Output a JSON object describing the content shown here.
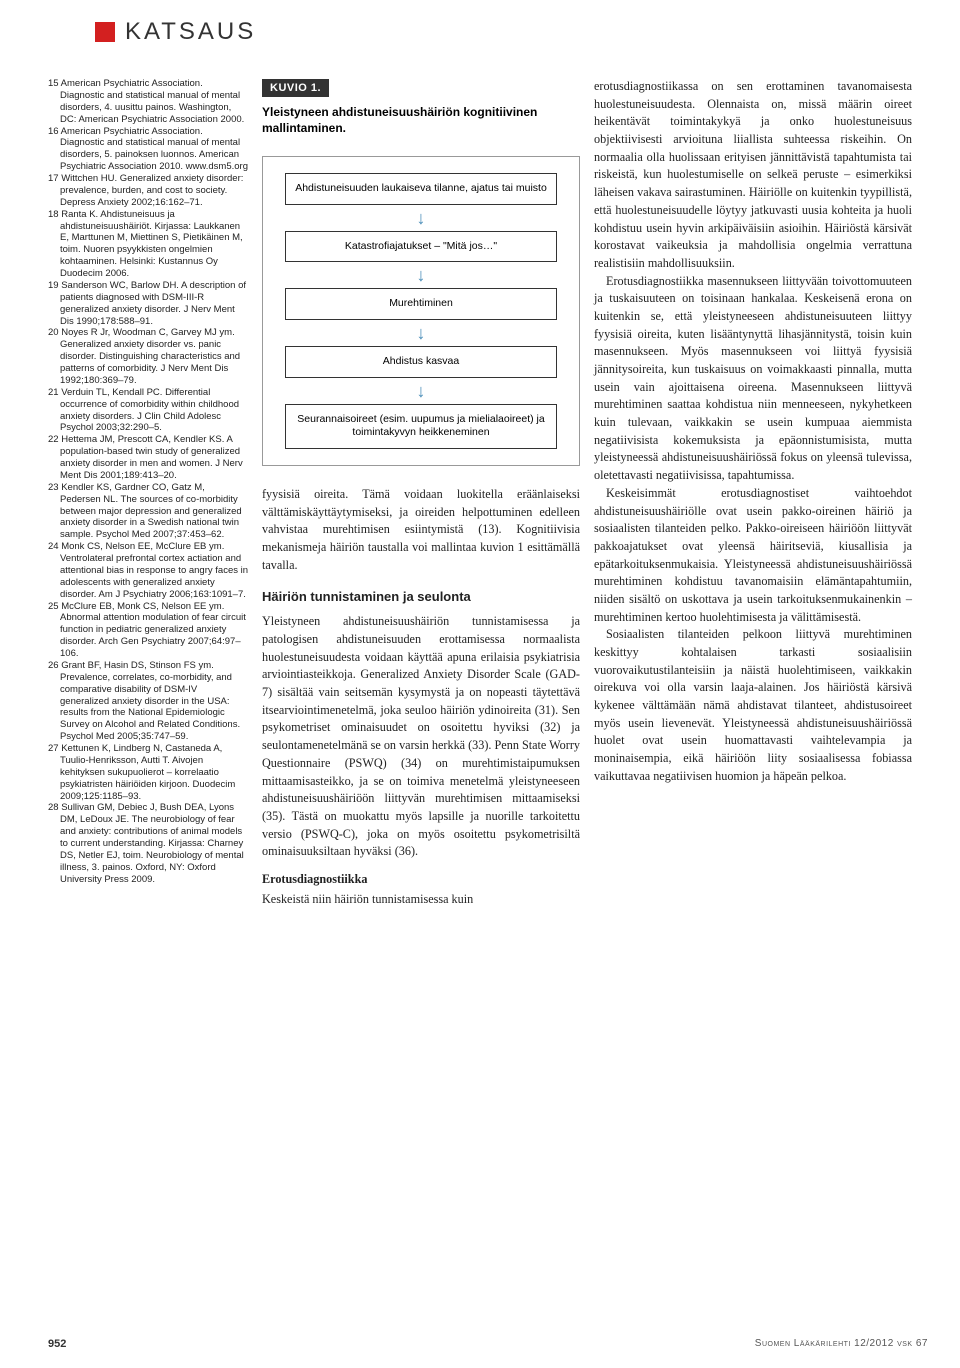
{
  "header": {
    "category": "KATSAUS"
  },
  "references": [
    "15 American Psychiatric Association. Diagnostic and statistical manual of mental disorders, 4. uusittu painos. Washington, DC: American Psychiatric Association 2000.",
    "16 American Psychiatric Association. Diagnostic and statistical manual of mental disorders, 5. painoksen luonnos. American Psychiatric Association 2010. www.dsm5.org",
    "17 Wittchen HU. Generalized anxiety disorder: prevalence, burden, and cost to society. Depress Anxiety 2002;16:162–71.",
    "18 Ranta K. Ahdistuneisuus ja ahdistuneisuushäiriöt. Kirjassa: Laukkanen E, Marttunen M, Miettinen S, Pietikäinen M, toim. Nuoren psyykkisten ongelmien kohtaaminen. Helsinki: Kustannus Oy Duodecim 2006.",
    "19 Sanderson WC, Barlow DH. A description of patients diagnosed with DSM-III-R generalized anxiety disorder. J Nerv Ment Dis 1990;178:588–91.",
    "20 Noyes R Jr, Woodman C, Garvey MJ ym. Generalized anxiety disorder vs. panic disorder. Distinguishing characteristics and patterns of comorbidity. J Nerv Ment Dis 1992;180:369–79.",
    "21 Verduin TL, Kendall PC. Differential occurrence of comorbidity within childhood anxiety disorders. J Clin Child Adolesc Psychol 2003;32:290–5.",
    "22 Hettema JM, Prescott CA, Kendler KS. A population-based twin study of generalized anxiety disorder in men and women. J Nerv Ment Dis 2001;189:413–20.",
    "23 Kendler KS, Gardner CO, Gatz M, Pedersen NL. The sources of co-morbidity between major depression and generalized anxiety disorder in a Swedish national twin sample. Psychol Med 2007;37:453–62.",
    "24 Monk CS, Nelson EE, McClure EB ym. Ventrolateral prefrontal cortex actiation and attentional bias in response to angry faces in adolescents with generalized anxiety disorder. Am J Psychiatry 2006;163:1091–7.",
    "25 McClure EB, Monk CS, Nelson EE ym. Abnormal attention modulation of fear circuit function in pediatric generalized anxiety disorder. Arch Gen Psychiatry 2007;64:97–106.",
    "26 Grant BF, Hasin DS, Stinson FS ym. Prevalence, correlates, co-morbidity, and comparative disability of DSM-IV generalized anxiety disorder in the USA: results from the National Epidemiologic Survey on Alcohol and Related Conditions. Psychol Med 2005;35:747–59.",
    "27 Kettunen K, Lindberg N, Castaneda A, Tuulio-Henriksson, Autti T. Aivojen kehityksen sukupuolierot – korrelaatio psykiatristen häiriöiden kirjoon. Duodecim 2009;125:1185–93.",
    "28 Sullivan GM, Debiec J, Bush DEA, Lyons DM, LeDoux JE. The neurobiology of fear and anxiety: contributions of animal models to current understanding. Kirjassa: Charney DS, Netler EJ, toim. Neurobiology of mental illness, 3. painos. Oxford, NY: Oxford University Press 2009."
  ],
  "figure": {
    "label": "KUVIO 1.",
    "title": "Yleistyneen ahdistuneisuushäiriön kognitiivinen mallintaminen.",
    "boxes": [
      "Ahdistuneisuuden laukaiseva tilanne, ajatus tai muisto",
      "Katastrofiajatukset – \"Mitä jos…\"",
      "Murehtiminen",
      "Ahdistus kasvaa",
      "Seurannaisoireet (esim. uupumus ja mielialaoireet) ja toimintakyvyn heikkeneminen"
    ],
    "arrow_color": "#4a8db8",
    "box_border": "#333333",
    "outer_border": "#999999"
  },
  "body": {
    "col1": {
      "p1": "fyysisiä oireita. Tämä voidaan luokitella eräänlaiseksi välttämiskäyttäytymiseksi, ja oireiden helpottuminen edelleen vahvistaa murehtimisen esiintymistä (13). Kognitiivisia mekanismeja häiriön taustalla voi mallintaa kuvion 1 esittämällä tavalla.",
      "h1": "Häiriön tunnistaminen ja seulonta",
      "p2": "Yleistyneen ahdistuneisuushäiriön tunnistamisessa ja patologisen ahdistuneisuuden erottamisessa normaalista huolestuneisuudesta voidaan käyttää apuna erilaisia psykiatrisia arviointiasteikkoja. Generalized Anxiety Disorder Scale (GAD-7) sisältää vain seitsemän kysymystä ja on nopeasti täytettävä itsearviointimenetelmä, joka seuloo häiriön ydinoireita (31). Sen psykometriset ominaisuudet on osoitettu hyviksi (32) ja seulontamenetelmänä se on varsin herkkä (33). Penn State Worry Questionnaire (PSWQ) (34) on murehtimistaipumuksen mittaamisasteikko, ja se on toimiva menetelmä yleistyneeseen ahdistuneisuushäiriöön liittyvän murehtimisen mittaamiseksi (35). Tästä on muokattu myös lapsille ja nuorille tarkoitettu versio (PSWQ-C), joka on myös osoitettu psykometrisiltä ominaisuuksiltaan hyväksi (36).",
      "h2": "Erotusdiagnostiikka",
      "p3": "Keskeistä niin häiriön tunnistamisessa kuin"
    },
    "col2": {
      "p1": "erotusdiagnostiikassa on sen erottaminen tavanomaisesta huolestuneisuudesta. Olennaista on, missä määrin oireet heikentävät toimintakykyä ja onko huolestuneisuus objektiivisesti arvioituna liiallista suhteessa riskeihin. On normaalia olla huolissaan erityisen jännittävistä tapahtumista tai riskeistä, kun huolestumiselle on selkeä peruste – esimerkiksi läheisen vakava sairastuminen. Häiriölle on kuitenkin tyypillistä, että huolestuneisuudelle löytyy jatkuvasti uusia kohteita ja huoli kohdistuu usein hyvin arkipäiväisiin asioihin. Häiriöstä kärsivät korostavat vaikeuksia ja mahdollisia ongelmia verrattuna realistisiin mahdollisuuksiin.",
      "p2": "Erotusdiagnostiikka masennukseen liittyvään toivottomuuteen ja tuskaisuuteen on toisinaan hankalaa. Keskeisenä erona on kuitenkin se, että yleistyneeseen ahdistuneisuuteen liittyy fyysisiä oireita, kuten lisääntynyttä lihasjännitystä, toisin kuin masennukseen. Myös masennukseen voi liittyä fyysisiä jännitysoireita, kun tuskaisuus on voimakkaasti pinnalla, mutta usein vain ajoittaisena oireena. Masennukseen liittyvä murehtiminen saattaa kohdistua niin menneeseen, nykyhetkeen kuin tulevaan, vaikkakin se usein kumpuaa aiemmista negatiivisista kokemuksista ja epäonnistumisista, mutta yleistyneessä ahdistuneisuushäiriössä fokus on yleensä tulevissa, oletettavasti negatiivisissa, tapahtumissa.",
      "p3": "Keskeisimmät erotusdiagnostiset vaihtoehdot ahdistuneisuushäiriölle ovat usein pakko-oireinen häiriö ja sosiaalisten tilanteiden pelko. Pakko-oireiseen häiriöön liittyvät pakkoajatukset ovat yleensä häiritseviä, kiusallisia ja epätarkoituksenmukaisia. Yleistyneessä ahdistuneisuushäiriössä murehtiminen kohdistuu tavanomaisiin elämäntapahtumiin, niiden sisältö on uskottava ja usein tarkoituksenmukainenkin – murehtiminen kertoo huolehtimisesta ja välittämisestä.",
      "p4": "Sosiaalisten tilanteiden pelkoon liittyvä murehtiminen keskittyy kohtalaisen tarkasti sosiaalisiin vuorovaikutustilanteisiin ja näistä huolehtimiseen, vaikkakin oirekuva voi olla varsin laaja-alainen. Jos häiriöstä kärsivä kykenee välttämään nämä ahdistavat tilanteet, ahdistusoireet myös usein lievenevät. Yleistyneessä ahdistuneisuushäiriössä huolet ovat usein huomattavasti vaihtelevampia ja moninaisempia, eikä häiriöön liity sosiaalisessa fobiassa vaikuttavaa negatiivisen huomion ja häpeän pelkoa."
    }
  },
  "footer": {
    "page": "952",
    "source": "Suomen Lääkärilehti 12/2012 vsk 67"
  }
}
